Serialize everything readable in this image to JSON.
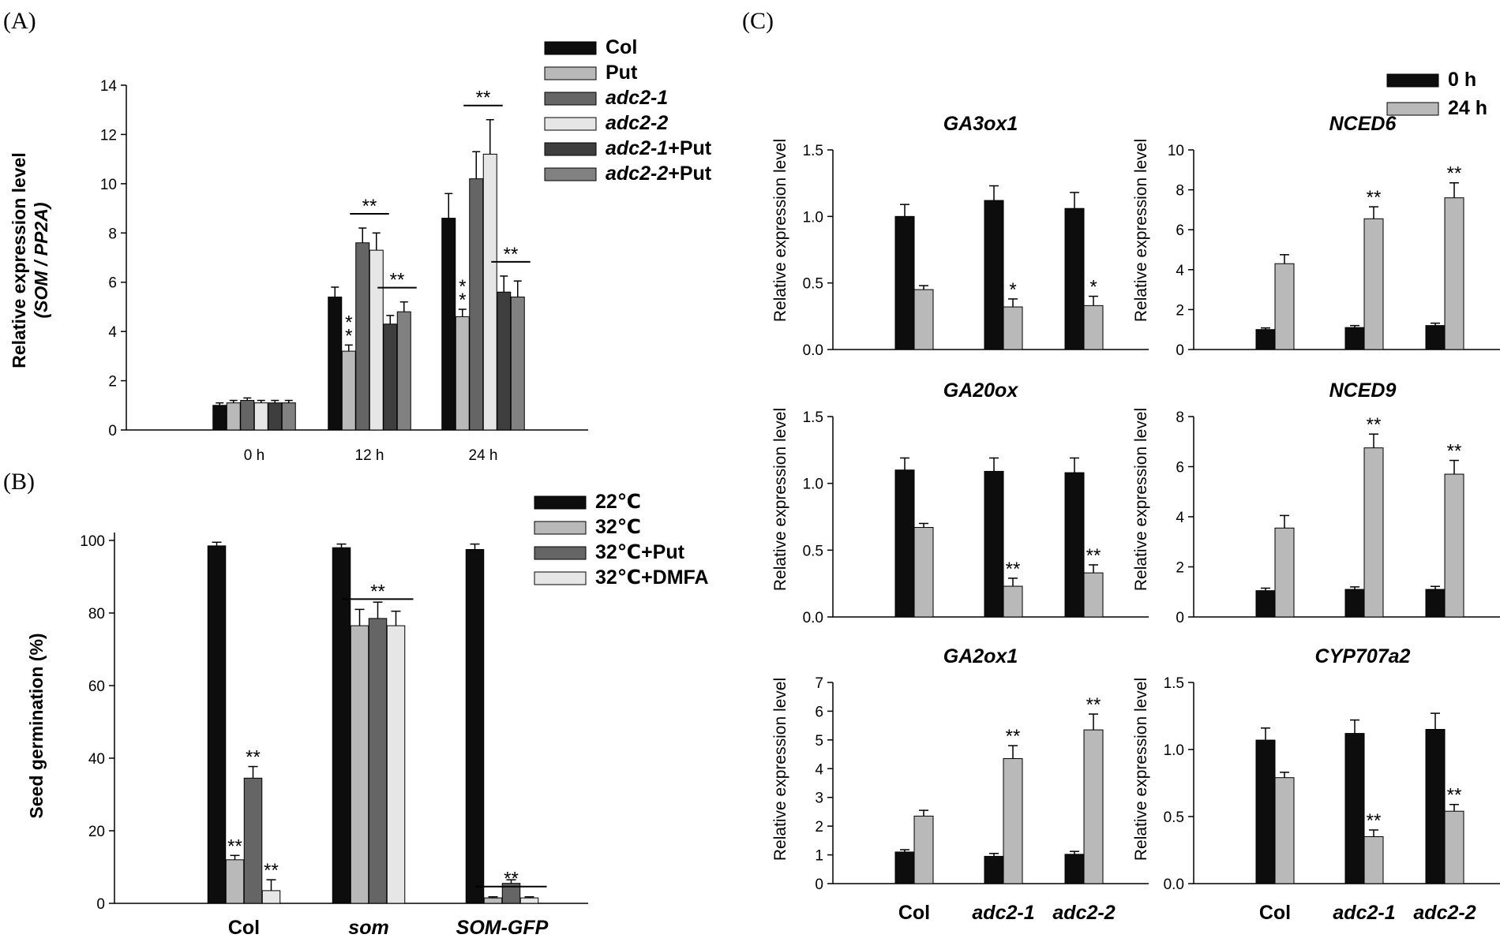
{
  "panel_labels": [
    "(A)",
    "(B)",
    "(C)"
  ],
  "colors": {
    "black": "#0d0d0d",
    "light_gray": "#b9b9b9",
    "dark_gray": "#656565",
    "very_light": "#e6e6e6",
    "darker_gray": "#3e3e3e",
    "mid_gray": "#818181"
  },
  "chart_data": [
    {
      "id": "A",
      "type": "bar",
      "ylabel_line1": "Relative expression level",
      "ylabel_line2": "(SOM / PP2A)",
      "ylim": [
        0,
        14
      ],
      "yticks": [
        "0",
        "2",
        "4",
        "6",
        "8",
        "10",
        "12",
        "14"
      ],
      "categories": [
        "0 h",
        "12 h",
        "24 h"
      ],
      "legend_position": "top-right",
      "series": [
        {
          "name": "Col",
          "italic": false,
          "suffix": "",
          "color": "#0d0d0d",
          "values": [
            1.0,
            5.4,
            8.6
          ],
          "errors": [
            0.1,
            0.4,
            1.0
          ]
        },
        {
          "name": "Put",
          "italic": false,
          "suffix": "",
          "color": "#b9b9b9",
          "values": [
            1.1,
            3.2,
            4.6
          ],
          "errors": [
            0.1,
            0.25,
            0.3
          ]
        },
        {
          "name": "adc2-1",
          "italic": true,
          "suffix": "",
          "color": "#656565",
          "values": [
            1.2,
            7.6,
            10.2
          ],
          "errors": [
            0.1,
            0.6,
            1.1
          ]
        },
        {
          "name": "adc2-2",
          "italic": true,
          "suffix": "",
          "color": "#e6e6e6",
          "values": [
            1.1,
            7.3,
            11.2
          ],
          "errors": [
            0.1,
            0.7,
            1.4
          ]
        },
        {
          "name": "adc2-1",
          "italic": true,
          "suffix": "+Put",
          "color": "#3e3e3e",
          "values": [
            1.1,
            4.3,
            5.6
          ],
          "errors": [
            0.1,
            0.35,
            0.65
          ]
        },
        {
          "name": "adc2-2",
          "italic": true,
          "suffix": "+Put",
          "color": "#818181",
          "values": [
            1.1,
            4.8,
            5.4
          ],
          "errors": [
            0.1,
            0.4,
            0.65
          ]
        }
      ],
      "annotations": [
        {
          "text": "*",
          "category": 1,
          "series": 1,
          "level": 0
        },
        {
          "text": "*",
          "category": 1,
          "series": 1,
          "level": 1
        },
        {
          "text": "**",
          "category": 1,
          "span": [
            2,
            3
          ]
        },
        {
          "text": "**",
          "category": 1,
          "span": [
            4,
            5
          ]
        },
        {
          "text": "*",
          "category": 2,
          "series": 1,
          "level": 0
        },
        {
          "text": "*",
          "category": 2,
          "series": 1,
          "level": 1
        },
        {
          "text": "**",
          "category": 2,
          "span": [
            2,
            3
          ]
        },
        {
          "text": "**",
          "category": 2,
          "span": [
            4,
            5
          ]
        }
      ]
    },
    {
      "id": "B",
      "type": "bar",
      "ylabel": "Seed germination (%)",
      "ylim": [
        0,
        100
      ],
      "yticks": [
        "0",
        "20",
        "40",
        "60",
        "80",
        "100"
      ],
      "categories": [
        "Col",
        "som",
        "SOM-GFP"
      ],
      "category_italic": [
        false,
        true,
        true
      ],
      "legend_position": "top-right",
      "series": [
        {
          "name": "22℃",
          "color": "#0d0d0d",
          "values": [
            98.5,
            98,
            97.5
          ],
          "errors": [
            1,
            1,
            1.5
          ]
        },
        {
          "name": "32℃",
          "color": "#b9b9b9",
          "values": [
            12,
            76.5,
            1.5
          ],
          "errors": [
            1.2,
            4.5,
            0.3
          ]
        },
        {
          "name": "32℃+Put",
          "color": "#656565",
          "values": [
            34.5,
            78.5,
            5.5
          ],
          "errors": [
            3.2,
            4.5,
            1
          ]
        },
        {
          "name": "32℃+DMFA",
          "color": "#e6e6e6",
          "values": [
            3.5,
            76.5,
            1.5
          ],
          "errors": [
            3,
            4,
            0.3
          ]
        }
      ],
      "annotations": [
        {
          "text": "**",
          "category": 0,
          "series": 1
        },
        {
          "text": "**",
          "category": 0,
          "series": 2
        },
        {
          "text": "**",
          "category": 0,
          "series": 3
        },
        {
          "text": "**",
          "category": 1,
          "span": [
            1,
            3
          ]
        },
        {
          "text": "**",
          "category": 2,
          "span": [
            1,
            3
          ]
        }
      ]
    },
    {
      "id": "C",
      "type": "bar",
      "ylabel": "Relative expression level",
      "categories": [
        "Col",
        "adc2-1",
        "adc2-2"
      ],
      "category_italic": [
        false,
        true,
        true
      ],
      "legend": [
        {
          "name": "0 h",
          "color": "#0d0d0d"
        },
        {
          "name": "24 h",
          "color": "#b9b9b9"
        }
      ],
      "legend_position": "top-right",
      "panels": [
        {
          "title": "GA3ox1",
          "ylim": [
            0,
            1.5
          ],
          "yticks": [
            "0.0",
            "0.5",
            "1.0",
            "1.5"
          ],
          "h0": [
            1.0,
            1.12,
            1.06
          ],
          "h0_err": [
            0.09,
            0.11,
            0.12
          ],
          "h24": [
            0.45,
            0.32,
            0.33
          ],
          "h24_err": [
            0.03,
            0.06,
            0.07
          ],
          "stars": [
            "",
            "*",
            "*"
          ]
        },
        {
          "title": "NCED6",
          "ylim": [
            0,
            10
          ],
          "yticks": [
            "0",
            "2",
            "4",
            "6",
            "8",
            "10"
          ],
          "h0": [
            1.0,
            1.1,
            1.2
          ],
          "h0_err": [
            0.08,
            0.1,
            0.12
          ],
          "h24": [
            4.3,
            6.55,
            7.6
          ],
          "h24_err": [
            0.45,
            0.6,
            0.75
          ],
          "stars": [
            "",
            "**",
            "**"
          ]
        },
        {
          "title": "GA20ox",
          "ylim": [
            0,
            1.5
          ],
          "yticks": [
            "0.0",
            "0.5",
            "1.0",
            "1.5"
          ],
          "h0": [
            1.1,
            1.09,
            1.08
          ],
          "h0_err": [
            0.09,
            0.1,
            0.11
          ],
          "h24": [
            0.67,
            0.23,
            0.33
          ],
          "h24_err": [
            0.03,
            0.06,
            0.06
          ],
          "stars": [
            "",
            "**",
            "**"
          ]
        },
        {
          "title": "NCED9",
          "ylim": [
            0,
            8
          ],
          "yticks": [
            "0",
            "2",
            "4",
            "6",
            "8"
          ],
          "h0": [
            1.05,
            1.1,
            1.1
          ],
          "h0_err": [
            0.1,
            0.1,
            0.12
          ],
          "h24": [
            3.55,
            6.75,
            5.7
          ],
          "h24_err": [
            0.5,
            0.55,
            0.55
          ],
          "stars": [
            "",
            "**",
            "**"
          ]
        },
        {
          "title": "GA2ox1",
          "ylim": [
            0,
            7
          ],
          "yticks": [
            "0",
            "1",
            "2",
            "3",
            "4",
            "5",
            "6",
            "7"
          ],
          "h0": [
            1.1,
            0.95,
            1.02
          ],
          "h0_err": [
            0.08,
            0.1,
            0.1
          ],
          "h24": [
            2.35,
            4.35,
            5.35
          ],
          "h24_err": [
            0.2,
            0.45,
            0.55
          ],
          "stars": [
            "",
            "**",
            "**"
          ]
        },
        {
          "title": "CYP707a2",
          "ylim": [
            0,
            1.5
          ],
          "yticks": [
            "0.0",
            "0.5",
            "1.0",
            "1.5"
          ],
          "h0": [
            1.07,
            1.12,
            1.15
          ],
          "h0_err": [
            0.09,
            0.1,
            0.12
          ],
          "h24": [
            0.79,
            0.35,
            0.54
          ],
          "h24_err": [
            0.04,
            0.05,
            0.05
          ],
          "stars": [
            "",
            "**",
            "**"
          ]
        }
      ]
    }
  ]
}
